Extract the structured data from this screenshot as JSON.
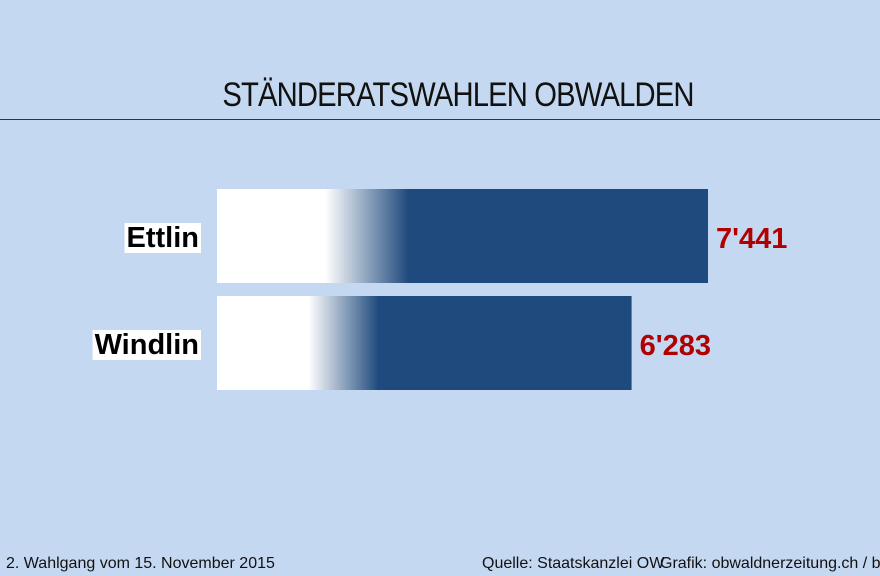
{
  "title": "STÄNDERATSWAHLEN OBWALDEN",
  "footer": {
    "note": "2. Wahlgang vom 15. November 2015",
    "source": "Quelle: Staatskanzlei OW",
    "credit": "Grafik: obwaldnerzeitung.ch / bac"
  },
  "colors": {
    "background": "#c5d8f1",
    "bar": "#1f4a7d",
    "value_label": "#b00000"
  },
  "chart_data": {
    "type": "bar",
    "orientation": "horizontal",
    "categories": [
      "Ettlin",
      "Windlin"
    ],
    "values": [
      7441,
      6283
    ],
    "value_labels": [
      "7'441",
      "6'283"
    ],
    "xlim": [
      0,
      7441
    ],
    "grid": false,
    "legend": "none"
  }
}
